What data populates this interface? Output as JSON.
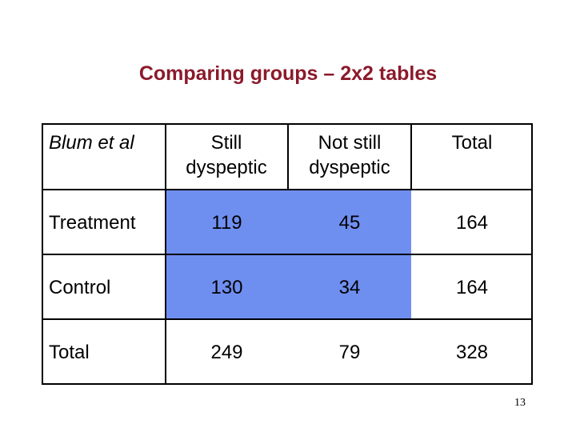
{
  "slide": {
    "title": "Comparing groups – 2x2 tables",
    "page_number": "13"
  },
  "table": {
    "corner_label": "Blum et al",
    "columns": [
      {
        "line1": "Still",
        "line2": "dyspeptic"
      },
      {
        "line1": "Not still",
        "line2": "dyspeptic"
      },
      {
        "line1": "Total",
        "line2": ""
      }
    ],
    "rows": [
      {
        "label": "Treatment",
        "values": [
          "119",
          "45",
          "164"
        ]
      },
      {
        "label": "Control",
        "values": [
          "130",
          "34",
          "164"
        ]
      },
      {
        "label": "Total",
        "values": [
          "249",
          "79",
          "328"
        ]
      }
    ],
    "highlight_color": "#6f8ff0"
  }
}
